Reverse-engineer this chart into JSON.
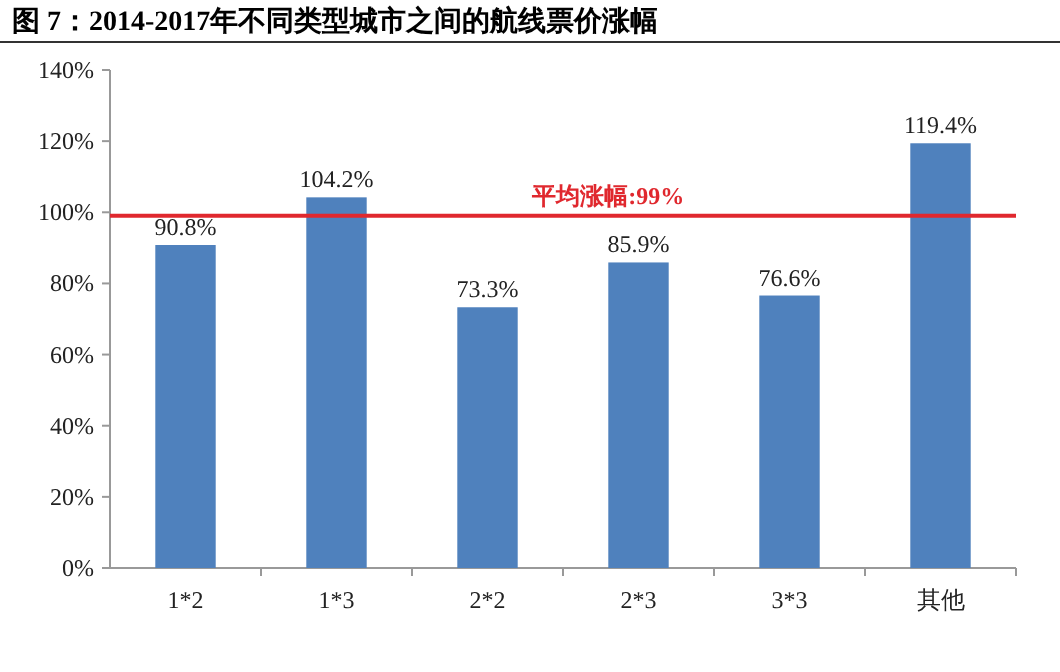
{
  "chart_data": {
    "type": "bar",
    "title": "图 7：2014-2017年不同类型城市之间的航线票价涨幅",
    "categories": [
      "1*2",
      "1*3",
      "2*2",
      "2*3",
      "3*3",
      "其他"
    ],
    "values": [
      90.8,
      104.2,
      73.3,
      85.9,
      76.6,
      119.4
    ],
    "value_labels": [
      "90.8%",
      "104.2%",
      "73.3%",
      "85.9%",
      "76.6%",
      "119.4%"
    ],
    "color": "#4f81bd",
    "ylim": [
      0,
      140
    ],
    "yticks": [
      {
        "value": 0,
        "label": "0%"
      },
      {
        "value": 20,
        "label": "20%"
      },
      {
        "value": 40,
        "label": "40%"
      },
      {
        "value": 60,
        "label": "60%"
      },
      {
        "value": 80,
        "label": "80%"
      },
      {
        "value": 100,
        "label": "100%"
      },
      {
        "value": 120,
        "label": "120%"
      },
      {
        "value": 140,
        "label": "140%"
      }
    ],
    "ref_lines": [
      {
        "axis": "y",
        "value": 99,
        "label": "平均涨幅:99%",
        "color": "#e0282e"
      }
    ],
    "grid": false
  }
}
